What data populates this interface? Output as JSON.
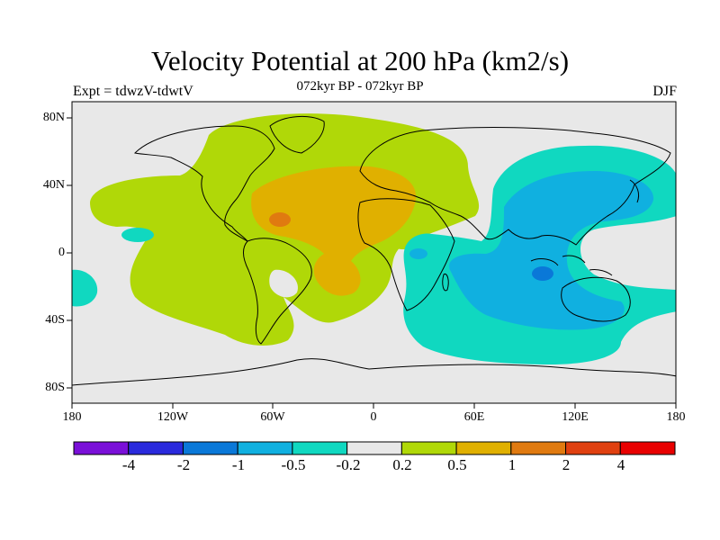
{
  "title": "Velocity Potential at 200 hPa (km2/s)",
  "subtitle": "072kyr BP - 072kyr BP",
  "left_label": "Expt = tdwzV-tdwtV",
  "right_label": "DJF",
  "lat_ticks": [
    "80N",
    "40N",
    "0",
    "40S",
    "80S"
  ],
  "lon_ticks": [
    "180",
    "120W",
    "60W",
    "0",
    "60E",
    "120E",
    "180"
  ],
  "colorbar": {
    "labels": [
      "-4",
      "-2",
      "-1",
      "-0.5",
      "-0.2",
      "0.2",
      "0.5",
      "1",
      "2",
      "4"
    ],
    "colors": [
      "#7a10d8",
      "#2a2adc",
      "#0a78d8",
      "#10b0e0",
      "#10d8c0",
      "#e8e8e8",
      "#b0d808",
      "#e0b000",
      "#e07a10",
      "#e04010",
      "#e80000"
    ]
  },
  "field_colors": {
    "land_outline": "#000000",
    "neutral": "#e8e8e8",
    "pos_02": "#b0d808",
    "pos_05": "#e0b000",
    "pos_1": "#e07a10",
    "neg_02": "#10d8c0",
    "neg_05": "#10b0e0",
    "neg_1": "#0a78d8"
  }
}
